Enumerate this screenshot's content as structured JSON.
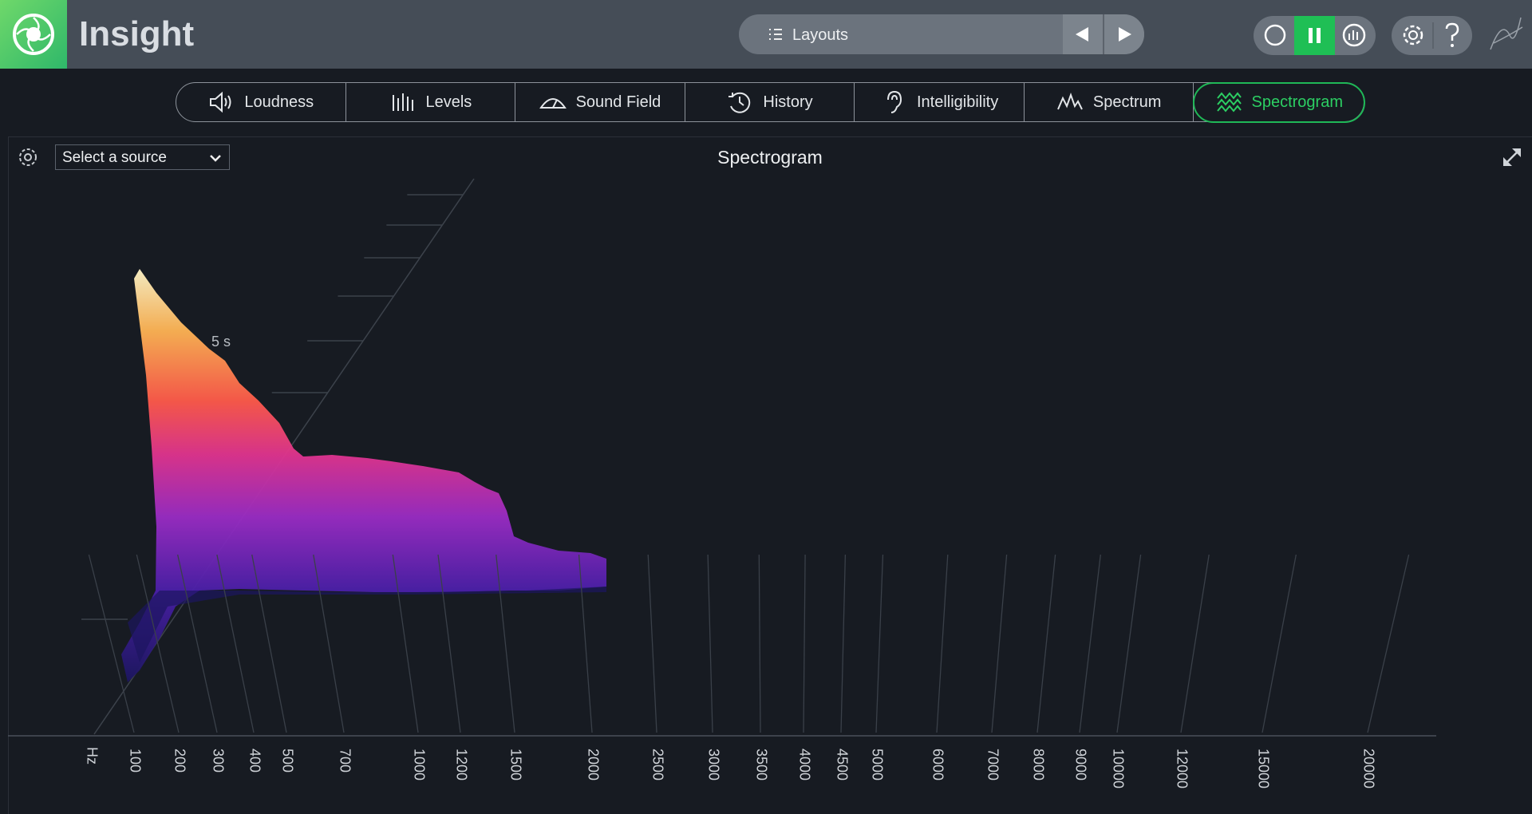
{
  "header": {
    "title": "Insight",
    "layouts": "Layouts"
  },
  "tabs": [
    "Loudness",
    "Levels",
    "Sound Field",
    "History",
    "Intelligibility",
    "Spectrum",
    "Spectrogram"
  ],
  "panel": {
    "source": "Select a source",
    "title": "Spectrogram",
    "time_label": "5 s",
    "freq_unit": "Hz",
    "freq_labels": [
      100,
      200,
      300,
      400,
      500,
      700,
      1000,
      1200,
      1500,
      2000,
      2500,
      3000,
      3500,
      4000,
      4500,
      5000,
      6000,
      7000,
      8000,
      9000,
      10000,
      12000,
      15000,
      20000
    ]
  }
}
